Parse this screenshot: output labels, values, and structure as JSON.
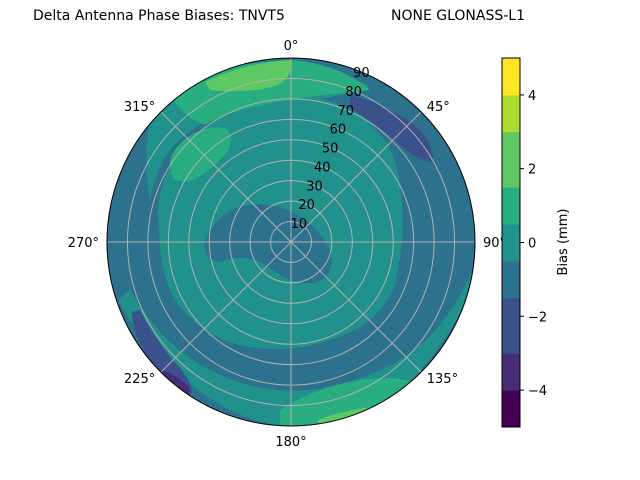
{
  "chart_data": {
    "type": "polar contour",
    "title_left": "Delta Antenna Phase Biases: TNVT5",
    "title_right": "NONE GLONASS-L1",
    "angular_ticks": [
      {
        "deg": 0,
        "label": "0°"
      },
      {
        "deg": 45,
        "label": "45°"
      },
      {
        "deg": 90,
        "label": "90°"
      },
      {
        "deg": 135,
        "label": "135°"
      },
      {
        "deg": 180,
        "label": "180°"
      },
      {
        "deg": 225,
        "label": "225°"
      },
      {
        "deg": 270,
        "label": "270°"
      },
      {
        "deg": 315,
        "label": "315°"
      }
    ],
    "radial_ticks": [
      10,
      20,
      30,
      40,
      50,
      60,
      70,
      80,
      90
    ],
    "radial_range": [
      0,
      90
    ],
    "colorbar": {
      "label": "Bias (mm)",
      "range": [
        -5,
        5
      ],
      "ticks": [
        -4,
        -2,
        0,
        2,
        4
      ],
      "levels": [
        -5,
        -4.5,
        -4,
        -3.5,
        -3,
        -2.5,
        -2,
        -1.5,
        -1,
        -0.5,
        0,
        0.5,
        1,
        1.5,
        2,
        2.5,
        3,
        3.5,
        4,
        4.5,
        5
      ],
      "colors": [
        "#440154",
        "#472c7a",
        "#3b518b",
        "#2c718e",
        "#21918c",
        "#28ae80",
        "#5ec962",
        "#addc30",
        "#fde725"
      ]
    },
    "grid": true
  }
}
